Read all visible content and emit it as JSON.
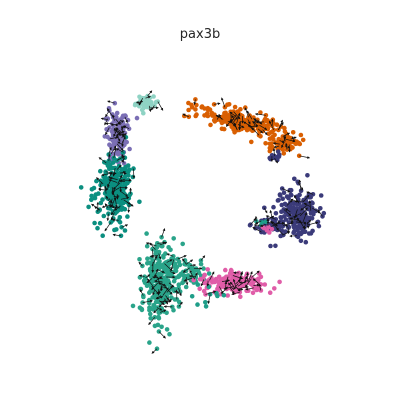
{
  "chart_data": {
    "type": "scatter",
    "title": "pax3b",
    "xlabel": "",
    "ylabel": "",
    "grid": false,
    "axes_visible": false,
    "xlim": [
      0,
      100
    ],
    "ylim": [
      0,
      100
    ],
    "velocity_arrows": true,
    "arrow_color": "#111111",
    "clusters": [
      {
        "color": "#d95f02",
        "count": 210,
        "center": [
          62,
          78
        ],
        "spread": [
          12,
          3
        ],
        "shape": "arc-down"
      },
      {
        "color": "#d95f02",
        "count": 60,
        "center": [
          76,
          71
        ],
        "spread": [
          4,
          3
        ],
        "shape": "blob"
      },
      {
        "color": "#3b3b7a",
        "count": 14,
        "center": [
          73,
          66
        ],
        "spread": [
          2,
          1
        ],
        "shape": "blob"
      },
      {
        "color": "#3b3b7a",
        "count": 200,
        "center": [
          80,
          47
        ],
        "spread": [
          6,
          7
        ],
        "shape": "blob"
      },
      {
        "color": "#3b3b7a",
        "count": 40,
        "center": [
          72,
          43
        ],
        "spread": [
          4,
          2
        ],
        "shape": "blob"
      },
      {
        "color": "#1f9e89",
        "count": 4,
        "center": [
          69,
          44
        ],
        "spread": [
          2,
          1
        ],
        "shape": "blob"
      },
      {
        "color": "#e05da8",
        "count": 6,
        "center": [
          71,
          42
        ],
        "spread": [
          2,
          1
        ],
        "shape": "blob"
      },
      {
        "color": "#8fd3c4",
        "count": 40,
        "center": [
          30,
          84
        ],
        "spread": [
          3,
          2
        ],
        "shape": "blob"
      },
      {
        "color": "#7b6fb5",
        "count": 140,
        "center": [
          21,
          73
        ],
        "spread": [
          3,
          8
        ],
        "shape": "blob"
      },
      {
        "color": "#0b8f80",
        "count": 230,
        "center": [
          20,
          55
        ],
        "spread": [
          5,
          9
        ],
        "shape": "blob"
      },
      {
        "color": "#2aa48a",
        "count": 260,
        "center": [
          35,
          24
        ],
        "spread": [
          5,
          11
        ],
        "shape": "blob"
      },
      {
        "color": "#2aa48a",
        "count": 60,
        "center": [
          45,
          27
        ],
        "spread": [
          6,
          3
        ],
        "shape": "blob"
      },
      {
        "color": "#e05da8",
        "count": 170,
        "center": [
          60,
          24
        ],
        "spread": [
          10,
          3
        ],
        "shape": "blob"
      },
      {
        "color": "#1f9e89",
        "count": 10,
        "center": [
          50,
          20
        ],
        "spread": [
          4,
          3
        ],
        "shape": "blob"
      }
    ]
  }
}
